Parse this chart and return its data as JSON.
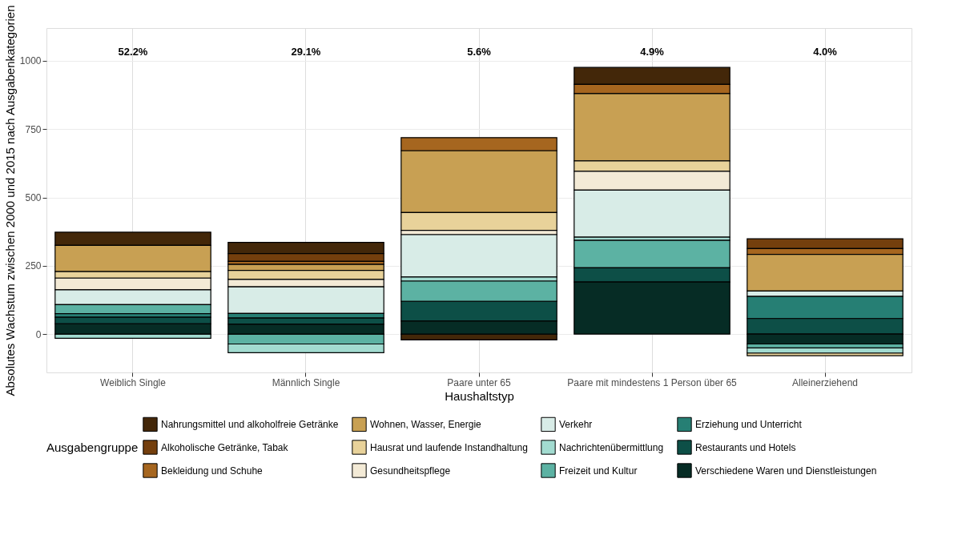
{
  "chart_data": {
    "type": "bar",
    "stacked": true,
    "xlabel": "Haushaltstyp",
    "ylabel": "Absolutes Wachstum zwischen 2000 und 2015 nach Ausgabenkategorien",
    "legend_title": "Ausgabengruppe",
    "categories": [
      "Weiblich Single",
      "Männlich Single",
      "Paare unter 65",
      "Paare mit mindestens 1 Person über 65",
      "Alleinerziehend"
    ],
    "ylim": [
      -140,
      1120
    ],
    "yticks": [
      0,
      250,
      500,
      750,
      1000
    ],
    "grid": true,
    "legend": "bottom",
    "series": [
      {
        "name": "Nahrungsmittel und alkoholfreie Getränke",
        "color": "#432709",
        "values": [
          48,
          41,
          -21,
          62,
          null
        ]
      },
      {
        "name": "Alkoholische Getränke, Tabak",
        "color": "#743f0d",
        "values": [
          null,
          29,
          null,
          null,
          36
        ]
      },
      {
        "name": "Bekleidung und Schuhe",
        "color": "#a6661f",
        "values": [
          null,
          11,
          48,
          34,
          21
        ]
      },
      {
        "name": "Wohnen, Wasser, Energie",
        "color": "#c8a053",
        "values": [
          96,
          22,
          226,
          246,
          134
        ]
      },
      {
        "name": "Hausrat und laufende Instandhaltung",
        "color": "#e8d29a",
        "values": [
          24,
          33,
          65,
          38,
          -10
        ]
      },
      {
        "name": "Gesundheitspflege",
        "color": "#f3ead6",
        "values": [
          43,
          27,
          16,
          69,
          null
        ]
      },
      {
        "name": "Verkehr",
        "color": "#d8ece7",
        "values": [
          54,
          97,
          155,
          172,
          20
        ]
      },
      {
        "name": "Nachrichtenübermittlung",
        "color": "#a2dbd0",
        "values": [
          -15,
          -32,
          15,
          12,
          -19
        ]
      },
      {
        "name": "Freizeit und Kultur",
        "color": "#5cb2a3",
        "values": [
          33,
          -36,
          74,
          100,
          -14
        ]
      },
      {
        "name": "Erziehung und Unterricht",
        "color": "#267f74",
        "values": [
          13,
          17,
          null,
          null,
          81
        ]
      },
      {
        "name": "Restaurants und Hotels",
        "color": "#0d4f47",
        "values": [
          24,
          23,
          72,
          52,
          57
        ]
      },
      {
        "name": "Verschiedene Waren und Dienstleistungen",
        "color": "#062c25",
        "values": [
          38,
          36,
          48,
          191,
          -36
        ]
      }
    ],
    "annotations": [
      "52.2%",
      "29.1%",
      "5.6%",
      "4.9%",
      "4.0%"
    ]
  }
}
